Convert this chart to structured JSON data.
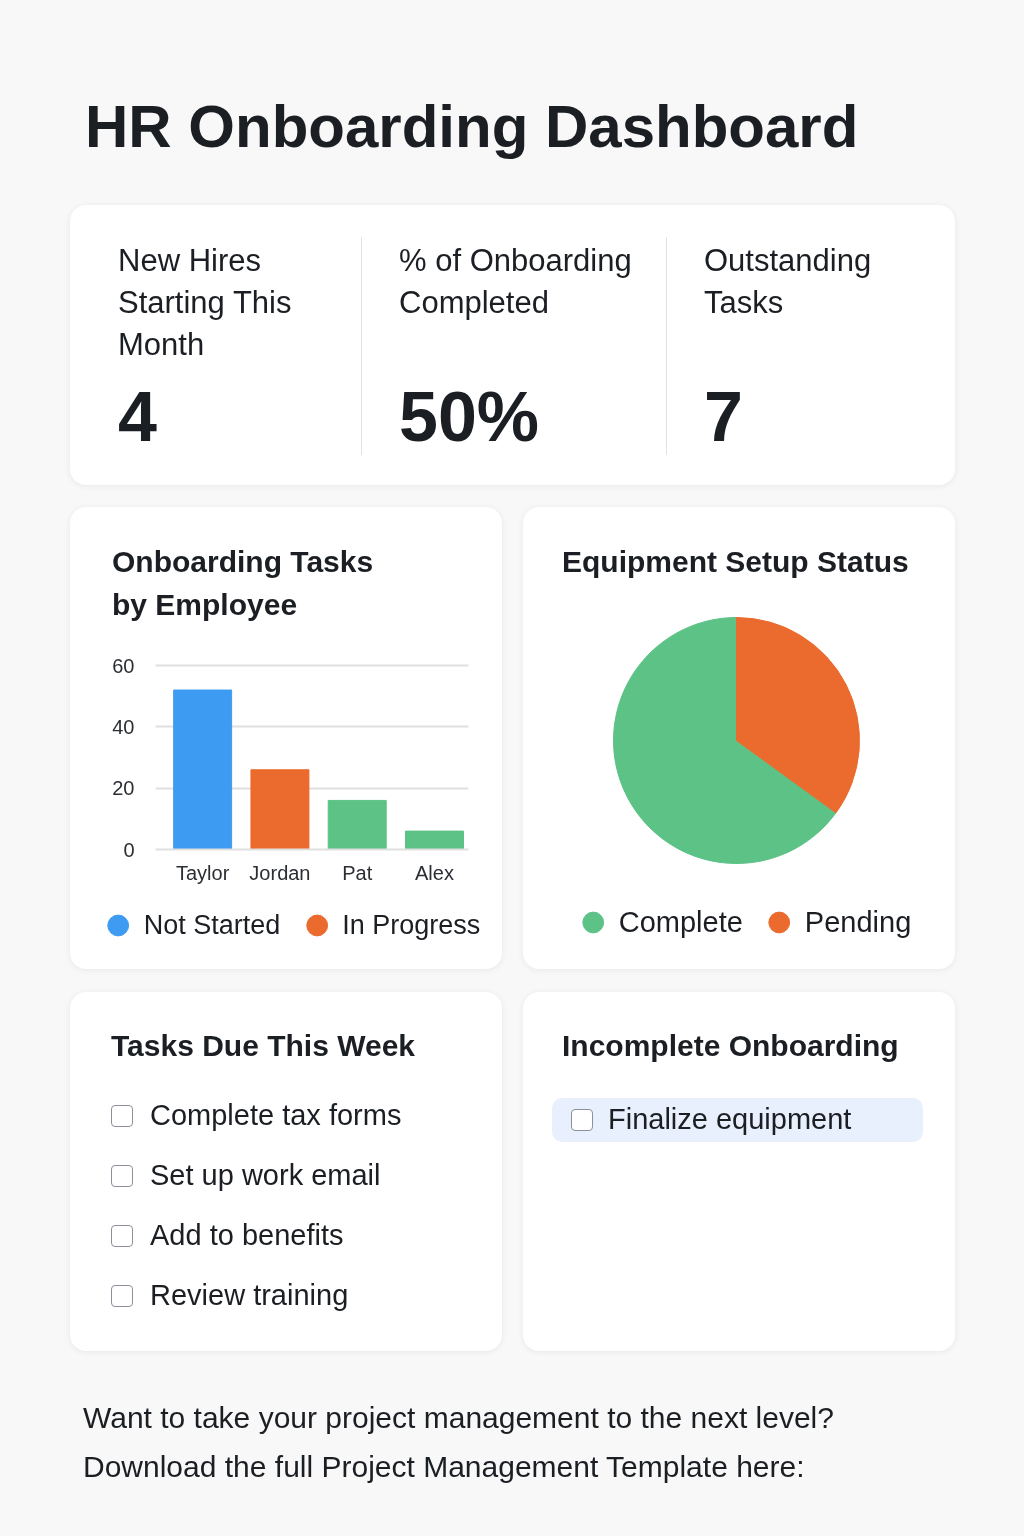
{
  "chart_data": [
    {
      "type": "other",
      "title": "HR Onboarding Dashboard",
      "categories": [
        "New Hires Starting This Month",
        "% of Onboarding Completed",
        "Outstanding Tasks"
      ],
      "values": [
        4,
        50,
        7
      ],
      "value_labels": [
        "4",
        "50%",
        "7"
      ]
    },
    {
      "type": "bar",
      "title": "Onboarding Tasks by Employee",
      "categories": [
        "Taylor",
        "Jordan",
        "Pat",
        "Alex"
      ],
      "series": [
        {
          "name": "Not Started",
          "color": "#3d9bf2",
          "values": [
            52,
            null,
            null,
            null
          ]
        },
        {
          "name": "In Progress",
          "color": "#eb6a2d",
          "values": [
            null,
            26,
            null,
            null
          ]
        },
        {
          "color": "#5cc286",
          "values": [
            null,
            null,
            16,
            6
          ]
        }
      ],
      "stacked": true,
      "ylim": [
        0,
        60
      ],
      "yticks": [
        0,
        20,
        40,
        60
      ],
      "grid": "y",
      "legend": "bottom"
    },
    {
      "type": "pie",
      "title": "Equipment Setup Status",
      "categories": [
        "Complete",
        "Pending"
      ],
      "values": [
        65,
        35
      ],
      "colors": [
        "#5cc286",
        "#eb6a2d"
      ],
      "legend": "bottom"
    },
    {
      "type": "other",
      "title": "Tasks Due This Week",
      "categories": [
        "Complete tax forms",
        "Set up work email",
        "Add to benefits",
        "Review training"
      ]
    },
    {
      "type": "other",
      "title": "Incomplete Onboarding",
      "categories": [
        "Finalize equipment"
      ]
    },
    {
      "type": "other",
      "annotations": [
        "Want to take your project management to the next level?",
        "Download the full Project Management Template here:"
      ]
    }
  ]
}
